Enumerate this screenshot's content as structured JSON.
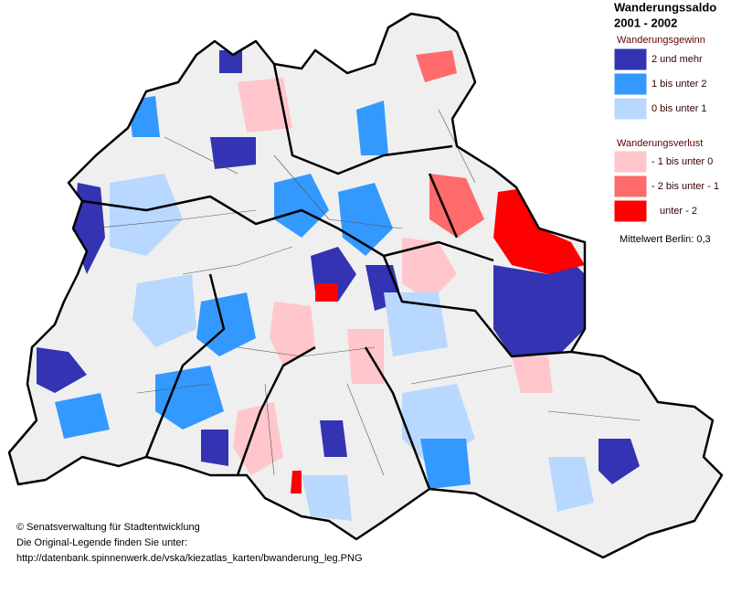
{
  "legend": {
    "title": "Wanderungssaldo",
    "subtitle": "2001 - 2002",
    "gain": {
      "heading": "Wanderungsgewinn",
      "items": [
        {
          "label": "2  und mehr",
          "color": "#3333b3"
        },
        {
          "label": "1  bis unter  2",
          "color": "#3399ff"
        },
        {
          "label": "0  bis unter  1",
          "color": "#b8d8ff"
        }
      ]
    },
    "loss": {
      "heading": "Wanderungsverlust",
      "items": [
        {
          "label": "- 1 bis unter  0",
          "color": "#ffc6cc"
        },
        {
          "label": "- 2 bis unter - 1",
          "color": "#ff6b6b"
        },
        {
          "label": "unter  - 2",
          "color": "#ff0000"
        }
      ]
    },
    "mean": "Mittelwert Berlin: 0,3"
  },
  "credits": [
    "© Senatsverwaltung für Stadtentwicklung",
    "Die Original-Legende finden Sie unter:",
    "http://datenbank.spinnenwerk.de/vska/kiezatlas_karten/bwanderung_leg.PNG"
  ]
}
